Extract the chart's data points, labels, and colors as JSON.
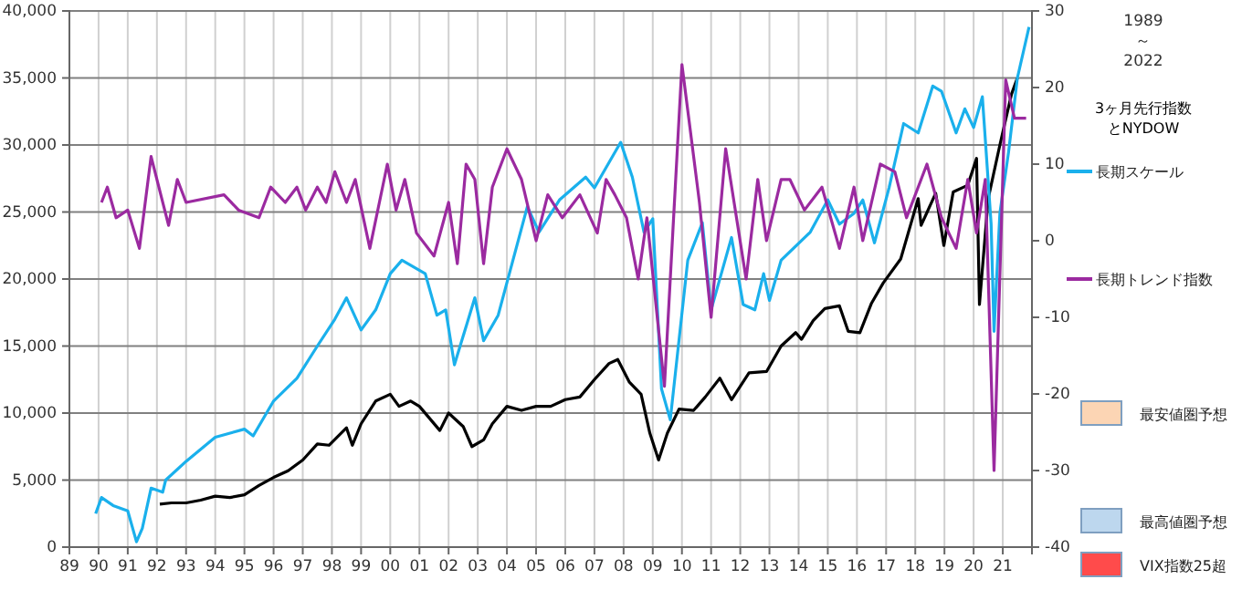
{
  "chart_data": {
    "type": "line",
    "title": "1989 ～ 2022",
    "xlim": [
      1989,
      2022
    ],
    "xticks": [
      {
        "value": 1989,
        "label": "89"
      },
      {
        "value": 1990,
        "label": "90"
      },
      {
        "value": 1991,
        "label": "91"
      },
      {
        "value": 1992,
        "label": "92"
      },
      {
        "value": 1993,
        "label": "93"
      },
      {
        "value": 1994,
        "label": "94"
      },
      {
        "value": 1995,
        "label": "95"
      },
      {
        "value": 1996,
        "label": "96"
      },
      {
        "value": 1997,
        "label": "97"
      },
      {
        "value": 1998,
        "label": "98"
      },
      {
        "value": 1999,
        "label": "99"
      },
      {
        "value": 2000,
        "label": "00"
      },
      {
        "value": 2001,
        "label": "01"
      },
      {
        "value": 2002,
        "label": "02"
      },
      {
        "value": 2003,
        "label": "03"
      },
      {
        "value": 2004,
        "label": "04"
      },
      {
        "value": 2005,
        "label": "05"
      },
      {
        "value": 2006,
        "label": "06"
      },
      {
        "value": 2007,
        "label": "07"
      },
      {
        "value": 2008,
        "label": "08"
      },
      {
        "value": 2009,
        "label": "09"
      },
      {
        "value": 2010,
        "label": "10"
      },
      {
        "value": 2011,
        "label": "11"
      },
      {
        "value": 2012,
        "label": "12"
      },
      {
        "value": 2013,
        "label": "13"
      },
      {
        "value": 2014,
        "label": "14"
      },
      {
        "value": 2015,
        "label": "15"
      },
      {
        "value": 2016,
        "label": "16"
      },
      {
        "value": 2017,
        "label": "17"
      },
      {
        "value": 2018,
        "label": "18"
      },
      {
        "value": 2019,
        "label": "19"
      },
      {
        "value": 2020,
        "label": "20"
      },
      {
        "value": 2021,
        "label": "21"
      }
    ],
    "ylim": [
      0,
      40000
    ],
    "yticks": [
      0,
      {
        "value": 5000,
        "label": "5,000"
      },
      {
        "value": 10000,
        "label": "10,000"
      },
      {
        "value": 15000,
        "label": "15,000"
      },
      {
        "value": 20000,
        "label": "20,000"
      },
      {
        "value": 25000,
        "label": "25,000"
      },
      {
        "value": 30000,
        "label": "30,000"
      },
      {
        "value": 35000,
        "label": "35,000"
      },
      {
        "value": 40000,
        "label": "40,000"
      }
    ],
    "y2lim": [
      -40,
      30
    ],
    "y2ticks": [
      -40,
      -30,
      -20,
      -10,
      0,
      10,
      20,
      30
    ],
    "grid": true,
    "legend": "right",
    "series": [
      {
        "name": "3ヶ月先行指数とNYDOW",
        "axis": "y",
        "color": "#000000",
        "x": [
          1992.1,
          1992.5,
          1993,
          1993.5,
          1994,
          1994.5,
          1995,
          1995.5,
          1996,
          1996.5,
          1997,
          1997.5,
          1997.9,
          1998.5,
          1998.7,
          1999,
          1999.5,
          2000,
          2000.3,
          2000.7,
          2001,
          2001.7,
          2002,
          2002.5,
          2002.8,
          2003.2,
          2003.5,
          2004,
          2004.5,
          2005,
          2005.5,
          2006,
          2006.5,
          2007,
          2007.5,
          2007.8,
          2008.2,
          2008.6,
          2008.9,
          2009.2,
          2009.5,
          2009.9,
          2010.4,
          2010.8,
          2011.3,
          2011.7,
          2012.3,
          2012.9,
          2013.4,
          2013.9,
          2014.1,
          2014.5,
          2014.9,
          2015.4,
          2015.7,
          2016.1,
          2016.5,
          2016.9,
          2017.5,
          2017.9,
          2018.1,
          2018.2,
          2018.7,
          2018.98,
          2019.3,
          2019.8,
          2020.1,
          2020.2,
          2020.5,
          2020.9,
          2021.3,
          2021.5
        ],
        "values": [
          3200,
          3300,
          3300,
          3500,
          3800,
          3700,
          3900,
          4600,
          5200,
          5700,
          6500,
          7700,
          7600,
          8900,
          7600,
          9200,
          10900,
          11400,
          10500,
          10900,
          10500,
          8700,
          10000,
          9000,
          7500,
          8000,
          9200,
          10500,
          10200,
          10500,
          10500,
          11000,
          11200,
          12500,
          13700,
          14000,
          12300,
          11400,
          8500,
          6500,
          8500,
          10300,
          10200,
          11200,
          12600,
          11000,
          13000,
          13100,
          15000,
          16000,
          15500,
          16900,
          17800,
          18000,
          16100,
          16000,
          18200,
          19700,
          21500,
          24500,
          26000,
          24000,
          26400,
          22500,
          26500,
          27000,
          29000,
          18100,
          26000,
          30000,
          33800,
          35000
        ]
      },
      {
        "name": "長期スケール",
        "axis": "y",
        "color": "#1ab0ec",
        "x": [
          1989.9,
          1990.1,
          1990.5,
          1991,
          1991.3,
          1991.5,
          1991.8,
          1992.2,
          1992.3,
          1993,
          1994,
          1995,
          1995.3,
          1996,
          1996.8,
          1997.5,
          1998.1,
          1998.5,
          1999,
          1999.5,
          2000,
          2000.4,
          2001.2,
          2001.6,
          2001.9,
          2002.2,
          2002.9,
          2003.2,
          2003.7,
          2004.7,
          2005.1,
          2005.8,
          2006.7,
          2007,
          2007.9,
          2008.3,
          2008.7,
          2009,
          2009.3,
          2009.6,
          2010.2,
          2010.7,
          2011,
          2011.7,
          2012.1,
          2012.5,
          2012.8,
          2013,
          2013.4,
          2014.4,
          2015,
          2015.4,
          2015.9,
          2016.2,
          2016.6,
          2017.1,
          2017.6,
          2018.1,
          2018.6,
          2018.9,
          2019.4,
          2019.7,
          2020,
          2020.3,
          2020.6,
          2020.7,
          2020.9,
          2021.2,
          2021.5,
          2021.9
        ],
        "values": [
          2500,
          3700,
          3100,
          2700,
          400,
          1400,
          4400,
          4100,
          5000,
          6400,
          8200,
          8800,
          8300,
          10900,
          12600,
          15000,
          17000,
          18600,
          16200,
          17700,
          20400,
          21400,
          20400,
          17300,
          17700,
          13600,
          18600,
          15400,
          17300,
          25400,
          23500,
          25900,
          27600,
          26800,
          30200,
          27600,
          23500,
          24500,
          11800,
          9500,
          21400,
          24200,
          17700,
          23100,
          18100,
          17700,
          20400,
          18400,
          21400,
          23500,
          25900,
          24100,
          24900,
          25900,
          22700,
          26800,
          31600,
          30900,
          34400,
          34000,
          30900,
          32700,
          31300,
          33600,
          24100,
          16100,
          24900,
          29500,
          35000,
          38800
        ]
      },
      {
        "name": "長期トレンド指数",
        "axis": "y2",
        "color": "#9b2aa0",
        "x": [
          1990.1,
          1990.3,
          1990.6,
          1991,
          1991.4,
          1991.8,
          1992.4,
          1992.7,
          1993,
          1994.3,
          1994.8,
          1995.5,
          1995.9,
          1996.4,
          1996.8,
          1997.1,
          1997.5,
          1997.8,
          1998.1,
          1998.5,
          1998.8,
          1999.3,
          1999.9,
          2000.2,
          2000.5,
          2000.9,
          2001.5,
          2002,
          2002.3,
          2002.6,
          2002.9,
          2003.2,
          2003.5,
          2004,
          2004.5,
          2005,
          2005.4,
          2005.9,
          2006.5,
          2007.1,
          2007.4,
          2007.7,
          2008.1,
          2008.5,
          2008.8,
          2009.4,
          2010,
          2010.6,
          2011,
          2011.5,
          2012.2,
          2012.6,
          2012.9,
          2013.4,
          2013.7,
          2014.2,
          2014.8,
          2015.4,
          2015.9,
          2016.2,
          2016.8,
          2017.3,
          2017.7,
          2018.4,
          2018.9,
          2019.4,
          2019.8,
          2020.1,
          2020.4,
          2020.7,
          2021.1,
          2021.4,
          2021.8
        ],
        "values": [
          5,
          7,
          3,
          4,
          -1,
          11,
          2,
          8,
          5,
          6,
          4,
          3,
          7,
          5,
          7,
          4,
          7,
          5,
          9,
          5,
          8,
          -1,
          10,
          4,
          8,
          1,
          -2,
          5,
          -3,
          10,
          8,
          -3,
          7,
          12,
          8,
          0,
          6,
          3,
          6,
          1,
          8,
          6,
          3,
          -5,
          3,
          -19,
          23,
          5,
          -10,
          12,
          -5,
          8,
          0,
          8,
          8,
          4,
          7,
          -1,
          7,
          0,
          10,
          9,
          3,
          10,
          3,
          -1,
          8,
          1,
          8,
          -30,
          21,
          16,
          16
        ]
      },
      {
        "name": "最安値圏予想",
        "type": "area",
        "color": "#fcd5b4"
      },
      {
        "name": "最高値圏予想",
        "type": "area",
        "color": "#bdd7ee"
      },
      {
        "name": "VIX指数25超",
        "type": "area",
        "color": "#ff4b4b"
      }
    ]
  }
}
